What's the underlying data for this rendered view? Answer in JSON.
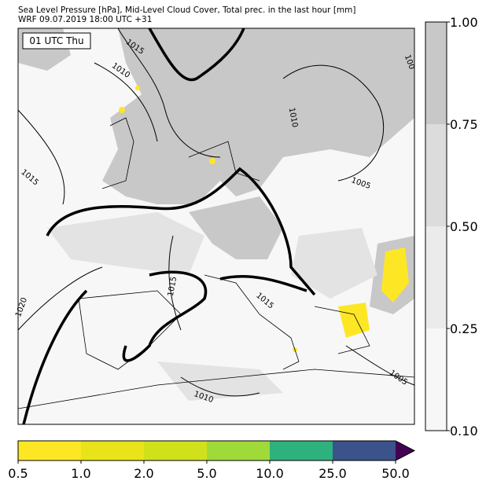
{
  "header": {
    "title_lines": [
      "Sea Level Pressure [hPa], Mid-Level Cloud Cover, Total prec. in the last hour [mm]",
      "WRF 09.07.2019 18:00 UTC +31"
    ]
  },
  "map": {
    "time_label": "01 UTC Thu",
    "contour_labels": [
      "1015",
      "1010",
      "1010",
      "1005",
      "1015",
      "1015",
      "1015",
      "1020",
      "1010",
      "1005",
      "100"
    ]
  },
  "cloud_cover_colorbar": {
    "colors": [
      "#f7f7f7",
      "#ebebeb",
      "#dcdcdc",
      "#c8c8c8"
    ],
    "ticks": [
      {
        "value": 0.1,
        "label": "0.10"
      },
      {
        "value": 0.25,
        "label": "0.25"
      },
      {
        "value": 0.5,
        "label": "0.50"
      },
      {
        "value": 0.75,
        "label": "0.75"
      },
      {
        "value": 1,
        "label": "1.00"
      }
    ]
  },
  "precip_colorbar": {
    "colors": [
      "#fde725",
      "#e8e419",
      "#d0e11c",
      "#a0da39",
      "#2db27d",
      "#3b528b",
      "#440154"
    ],
    "ticks": [
      0.5,
      {
        "value": 1,
        "label": "1.0"
      },
      {
        "value": 2,
        "label": "2.0"
      },
      {
        "value": 5,
        "label": "5.0"
      },
      {
        "value": 10,
        "label": "10.0"
      },
      {
        "value": 25,
        "label": "25.0"
      },
      {
        "value": 50,
        "label": "50.0"
      }
    ]
  }
}
